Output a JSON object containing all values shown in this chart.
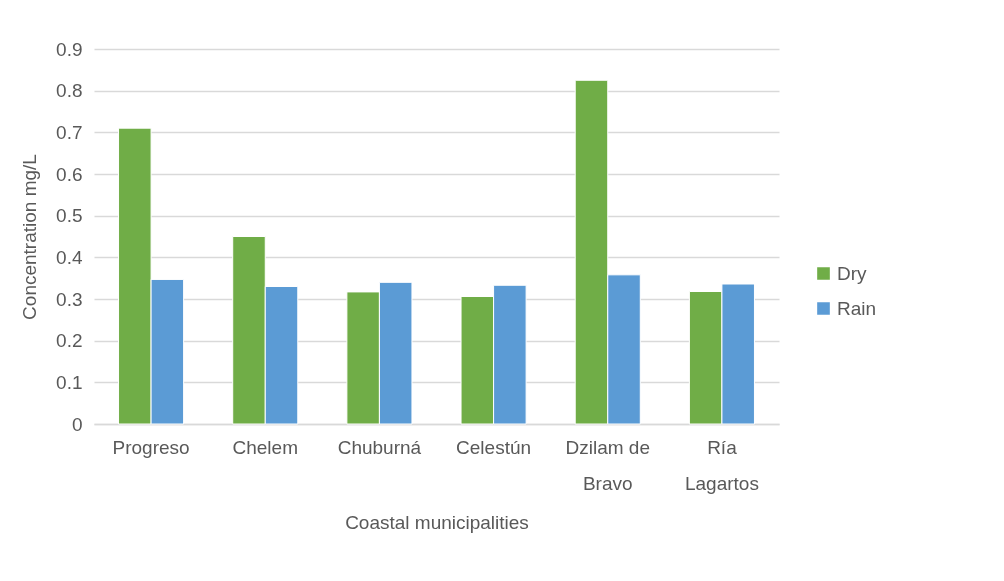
{
  "chart_data": {
    "type": "bar",
    "xlabel": "Coastal municipalities",
    "ylabel": "Concentration mg/L",
    "categories": [
      "Progreso",
      "Chelem",
      "Chuburná",
      "Celestún",
      "Dzilam de Bravo",
      "Ría Lagartos"
    ],
    "series": [
      {
        "name": "Dry",
        "color": "#70ad47",
        "values": [
          0.71,
          0.45,
          0.317,
          0.306,
          0.825,
          0.318
        ]
      },
      {
        "name": "Rain",
        "color": "#5b9bd5",
        "values": [
          0.347,
          0.33,
          0.34,
          0.333,
          0.358,
          0.336
        ]
      }
    ],
    "ylim": [
      0,
      0.9
    ],
    "yticks": [
      0,
      0.1,
      0.2,
      0.3,
      0.4,
      0.5,
      0.6,
      0.7,
      0.8,
      0.9
    ],
    "grid": "y",
    "legend": "right"
  }
}
